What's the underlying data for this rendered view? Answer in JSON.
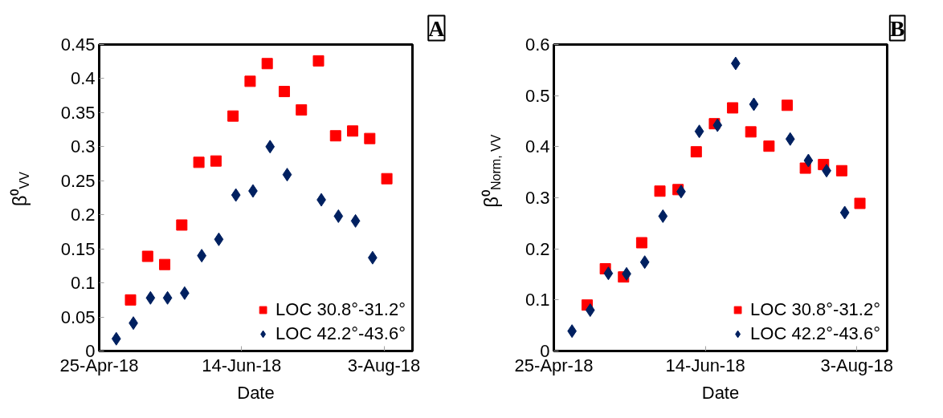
{
  "chart_data": [
    {
      "type": "scatter",
      "title": "A",
      "xlabel": "Date",
      "ylabel": "β⁰$_{VV}$",
      "xlim": [
        "2018-04-25",
        "2018-08-13"
      ],
      "xticks": [
        {
          "value": "2018-04-25",
          "label": "25-Apr-18"
        },
        {
          "value": "2018-06-14",
          "label": "14-Jun-18"
        },
        {
          "value": "2018-08-03",
          "label": "3-Aug-18"
        }
      ],
      "ylim": [
        0,
        0.45
      ],
      "yticks": [
        0,
        0.05,
        0.1,
        0.15,
        0.2,
        0.25,
        0.3,
        0.35,
        0.4,
        0.45
      ],
      "grid": false,
      "legend": "bottom right",
      "series": [
        {
          "name": "LOC 30.8°-31.2°",
          "color": "#ff0000",
          "marker": "square",
          "x": [
            "2018-05-06",
            "2018-05-12",
            "2018-05-18",
            "2018-05-24",
            "2018-05-30",
            "2018-06-05",
            "2018-06-11",
            "2018-06-17",
            "2018-06-23",
            "2018-06-29",
            "2018-07-05",
            "2018-07-11",
            "2018-07-17",
            "2018-07-23",
            "2018-07-29",
            "2018-08-04"
          ],
          "values": [
            0.075,
            0.139,
            0.127,
            0.185,
            0.277,
            0.279,
            0.345,
            0.396,
            0.422,
            0.381,
            0.354,
            0.426,
            0.316,
            0.323,
            0.312,
            0.253
          ]
        },
        {
          "name": "LOC 42.2°-43.6°",
          "color": "#002060",
          "marker": "diamond",
          "x": [
            "2018-05-01",
            "2018-05-07",
            "2018-05-13",
            "2018-05-19",
            "2018-05-25",
            "2018-05-31",
            "2018-06-06",
            "2018-06-12",
            "2018-06-18",
            "2018-06-24",
            "2018-06-30",
            "2018-07-12",
            "2018-07-18",
            "2018-07-24",
            "2018-07-30"
          ],
          "values": [
            0.018,
            0.041,
            0.078,
            0.078,
            0.085,
            0.14,
            0.164,
            0.229,
            0.235,
            0.3,
            0.259,
            0.222,
            0.198,
            0.191,
            0.137
          ]
        }
      ]
    },
    {
      "type": "scatter",
      "title": "B",
      "xlabel": "Date",
      "ylabel": "β⁰$_{Norm, VV}$",
      "xlim": [
        "2018-04-25",
        "2018-08-13"
      ],
      "xticks": [
        {
          "value": "2018-04-25",
          "label": "25-Apr-18"
        },
        {
          "value": "2018-06-14",
          "label": "14-Jun-18"
        },
        {
          "value": "2018-08-03",
          "label": "3-Aug-18"
        }
      ],
      "ylim": [
        0,
        0.6
      ],
      "yticks": [
        0,
        0.1,
        0.2,
        0.3,
        0.4,
        0.5,
        0.6
      ],
      "grid": false,
      "legend": "bottom right",
      "series": [
        {
          "name": "LOC 30.8°-31.2°",
          "color": "#ff0000",
          "marker": "square",
          "x": [
            "2018-05-06",
            "2018-05-12",
            "2018-05-18",
            "2018-05-24",
            "2018-05-30",
            "2018-06-05",
            "2018-06-11",
            "2018-06-17",
            "2018-06-23",
            "2018-06-29",
            "2018-07-05",
            "2018-07-11",
            "2018-07-17",
            "2018-07-23",
            "2018-07-29",
            "2018-08-04"
          ],
          "values": [
            0.09,
            0.161,
            0.145,
            0.212,
            0.313,
            0.316,
            0.39,
            0.445,
            0.476,
            0.429,
            0.401,
            0.481,
            0.358,
            0.365,
            0.353,
            0.289
          ]
        },
        {
          "name": "LOC 42.2°-43.6°",
          "color": "#002060",
          "marker": "diamond",
          "x": [
            "2018-05-01",
            "2018-05-07",
            "2018-05-13",
            "2018-05-19",
            "2018-05-25",
            "2018-05-31",
            "2018-06-06",
            "2018-06-12",
            "2018-06-18",
            "2018-06-24",
            "2018-06-30",
            "2018-07-12",
            "2018-07-18",
            "2018-07-24",
            "2018-07-30"
          ],
          "values": [
            0.039,
            0.08,
            0.152,
            0.151,
            0.174,
            0.264,
            0.312,
            0.43,
            0.442,
            0.563,
            0.483,
            0.415,
            0.373,
            0.353,
            0.271
          ]
        }
      ]
    }
  ]
}
